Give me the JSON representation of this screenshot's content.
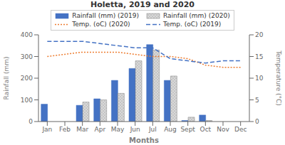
{
  "chart_data": {
    "type": "bar",
    "title": "Holetta, 2019 and 2020",
    "xlabel": "Months",
    "ylabel": "Rainfall (mm)",
    "y2label": "Temperature (°C)",
    "categories": [
      "Jan",
      "Feb",
      "Mar",
      "Apr",
      "May",
      "Jun",
      "Jul",
      "Aug",
      "Sept",
      "Oct",
      "Nov",
      "Dec"
    ],
    "series": [
      {
        "name": "Rainfall (mm) (2019)",
        "type": "bar",
        "color": "#4472c4",
        "values": [
          80,
          0,
          75,
          105,
          190,
          245,
          355,
          190,
          5,
          30,
          0,
          0
        ]
      },
      {
        "name": "Rainfall (mm) (2020)",
        "type": "bar",
        "color": "#d9d9d9",
        "values": [
          0,
          0,
          90,
          100,
          130,
          280,
          330,
          210,
          20,
          5,
          0,
          0
        ]
      },
      {
        "name": "Temp. (oC) (2020)",
        "type": "line",
        "axis": "y2",
        "color": "#ed7d31",
        "line_style": "dotted",
        "values": [
          15.0,
          15.5,
          16.0,
          16.0,
          16.0,
          15.5,
          15.0,
          15.0,
          14.5,
          13.0,
          12.5,
          12.5
        ]
      },
      {
        "name": "Temp. (oC) (2019)",
        "type": "line",
        "axis": "y2",
        "color": "#4472c4",
        "line_style": "dashed",
        "values": [
          18.5,
          18.5,
          18.5,
          18.0,
          17.5,
          17.0,
          17.0,
          14.5,
          14.0,
          13.5,
          14.0,
          14.0
        ]
      }
    ],
    "ylim": [
      0,
      400
    ],
    "yticks": [
      0,
      100,
      200,
      300,
      400
    ],
    "y2lim": [
      0,
      20
    ],
    "y2ticks": [
      0,
      5,
      10,
      15,
      20
    ],
    "grid": false,
    "legend": "top"
  }
}
